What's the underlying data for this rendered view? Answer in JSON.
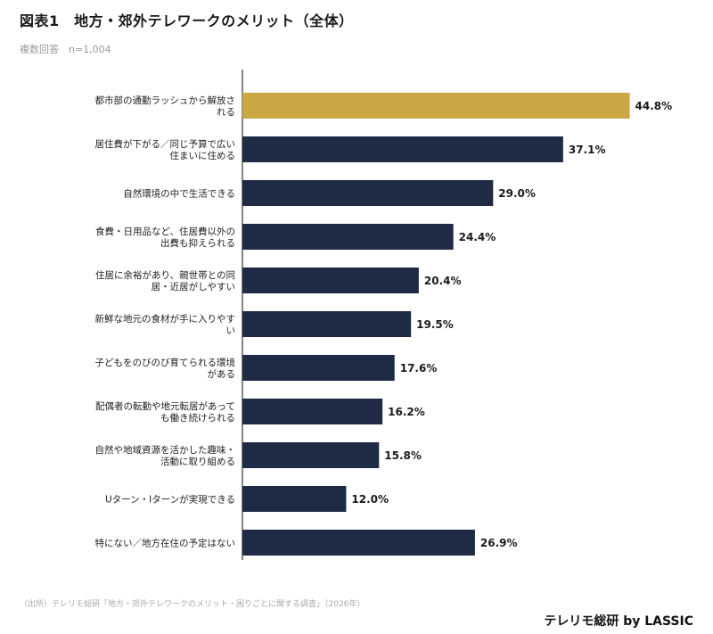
{
  "header": {
    "title": "図表1　地方・郊外テレワークのメリット（全体）",
    "subtitle": "複数回答　n=1,004"
  },
  "footer": {
    "source": "（出所）テレリモ総研「地方・郊外テレワークのメリット・困りごとに関する調査」（2026年）",
    "brand": "テレリモ総研 by LASSIC"
  },
  "colors": {
    "highlight": "#c9a742",
    "default": "#1f2a44",
    "axis": "#333333"
  },
  "chart_data": {
    "type": "bar",
    "orientation": "horizontal",
    "title": "図表1　地方・郊外テレワークのメリット（全体）",
    "categories": [
      [
        "都市部の通勤ラッシュから解放さ",
        "れる"
      ],
      [
        "居住費が下がる／同じ予算で広い",
        "住まいに住める"
      ],
      [
        "自然環境の中で生活できる"
      ],
      [
        "食費・日用品など、住居費以外の",
        "出費も抑えられる"
      ],
      [
        "住居に余裕があり、親世帯との同",
        "居・近居がしやすい"
      ],
      [
        "新鮮な地元の食材が手に入りやす",
        "い"
      ],
      [
        "子どもをのびのび育てられる環境",
        "がある"
      ],
      [
        "配偶者の転勤や地元転居があって",
        "も働き続けられる"
      ],
      [
        "自然や地域資源を活かした趣味・",
        "活動に取り組める"
      ],
      [
        "Uターン・Iターンが実現できる"
      ],
      [
        "特にない／地方在住の予定はない"
      ]
    ],
    "values": [
      44.8,
      37.1,
      29.0,
      24.4,
      20.4,
      19.5,
      17.6,
      16.2,
      15.8,
      12.0,
      26.9
    ],
    "value_labels": [
      "44.8%",
      "37.1%",
      "29.0%",
      "24.4%",
      "20.4%",
      "19.5%",
      "17.6%",
      "16.2%",
      "15.8%",
      "12.0%",
      "26.9%"
    ],
    "highlight_index": 0,
    "xlim": [
      0,
      50
    ]
  }
}
